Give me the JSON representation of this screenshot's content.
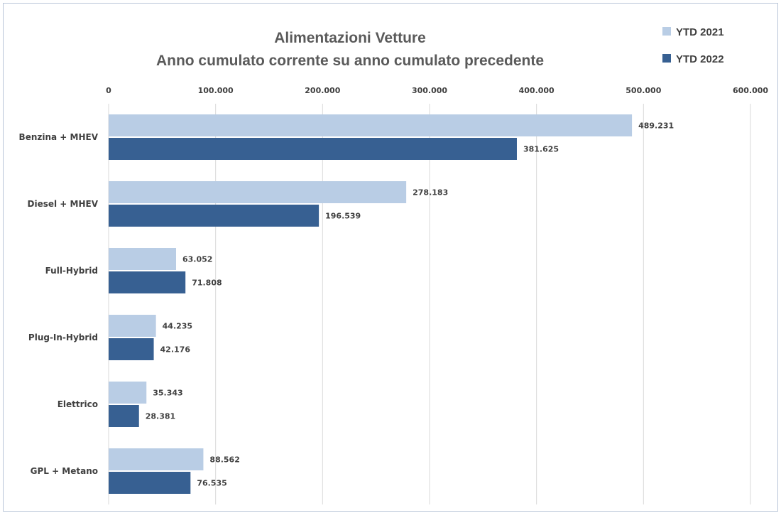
{
  "chart_data": {
    "type": "bar",
    "orientation": "horizontal",
    "title": [
      "Alimentazioni Vetture",
      "Anno cumulato corrente su anno cumulato precedente"
    ],
    "categories": [
      "Benzina + MHEV",
      "Diesel + MHEV",
      "Full-Hybrid",
      "Plug-In-Hybrid",
      "Elettrico",
      "GPL + Metano"
    ],
    "series": [
      {
        "name": "YTD 2021",
        "color": "#b9cde5",
        "values": [
          489231,
          278183,
          63052,
          44235,
          35343,
          88562
        ],
        "labels": [
          "489.231",
          "278.183",
          "63.052",
          "44.235",
          "35.343",
          "88.562"
        ]
      },
      {
        "name": "YTD 2022",
        "color": "#376092",
        "values": [
          381625,
          196539,
          71808,
          42176,
          28381,
          76535
        ],
        "labels": [
          "381.625",
          "196.539",
          "71.808",
          "42.176",
          "28.381",
          "76.535"
        ]
      }
    ],
    "xlim": [
      0,
      600000
    ],
    "xticks": [
      0,
      100000,
      200000,
      300000,
      400000,
      500000,
      600000
    ],
    "xtick_labels": [
      "0",
      "100.000",
      "200.000",
      "300.000",
      "400.000",
      "500.000",
      "600.000"
    ],
    "axis_position": "top",
    "grid": true,
    "legend_position": "top-right"
  }
}
